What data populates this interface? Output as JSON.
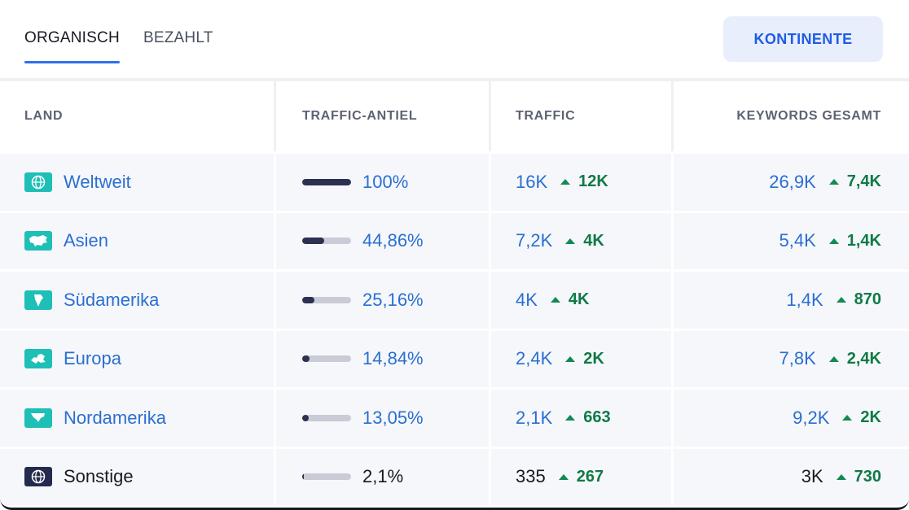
{
  "tabs": [
    {
      "label": "ORGANISCH",
      "active": true
    },
    {
      "label": "BEZAHLT",
      "active": false
    }
  ],
  "continents_button": "KONTINENTE",
  "columns": {
    "land": "LAND",
    "share": "TRAFFIC-ANTIEL",
    "traffic": "TRAFFIC",
    "keywords": "KEYWORDS GESAMT"
  },
  "rows": [
    {
      "name": "Weltweit",
      "icon": "globe-icon",
      "share": "100%",
      "share_fraction": 1.0,
      "traffic": "16K",
      "traffic_delta": "12K",
      "keywords": "26,9K",
      "keywords_delta": "7,4K",
      "linked": true
    },
    {
      "name": "Asien",
      "icon": "asia-map-icon",
      "share": "44,86%",
      "share_fraction": 0.4486,
      "traffic": "7,2K",
      "traffic_delta": "4K",
      "keywords": "5,4K",
      "keywords_delta": "1,4K",
      "linked": true
    },
    {
      "name": "Südamerika",
      "icon": "south-america-map-icon",
      "share": "25,16%",
      "share_fraction": 0.2516,
      "traffic": "4K",
      "traffic_delta": "4K",
      "keywords": "1,4K",
      "keywords_delta": "870",
      "linked": true
    },
    {
      "name": "Europa",
      "icon": "europe-map-icon",
      "share": "14,84%",
      "share_fraction": 0.1484,
      "traffic": "2,4K",
      "traffic_delta": "2K",
      "keywords": "7,8K",
      "keywords_delta": "2,4K",
      "linked": true
    },
    {
      "name": "Nordamerika",
      "icon": "north-america-map-icon",
      "share": "13,05%",
      "share_fraction": 0.1305,
      "traffic": "2,1K",
      "traffic_delta": "663",
      "keywords": "9,2K",
      "keywords_delta": "2K",
      "linked": true
    },
    {
      "name": "Sonstige",
      "icon": "globe-dark-icon",
      "share": "2,1%",
      "share_fraction": 0.021,
      "traffic": "335",
      "traffic_delta": "267",
      "keywords": "3K",
      "keywords_delta": "730",
      "linked": false
    }
  ],
  "colors": {
    "accent": "#2f6ff0",
    "link": "#2a6fd1",
    "teal_flag": "#1ebfb7",
    "bar_fill": "#2c3152",
    "delta_green": "#0f7a46"
  }
}
